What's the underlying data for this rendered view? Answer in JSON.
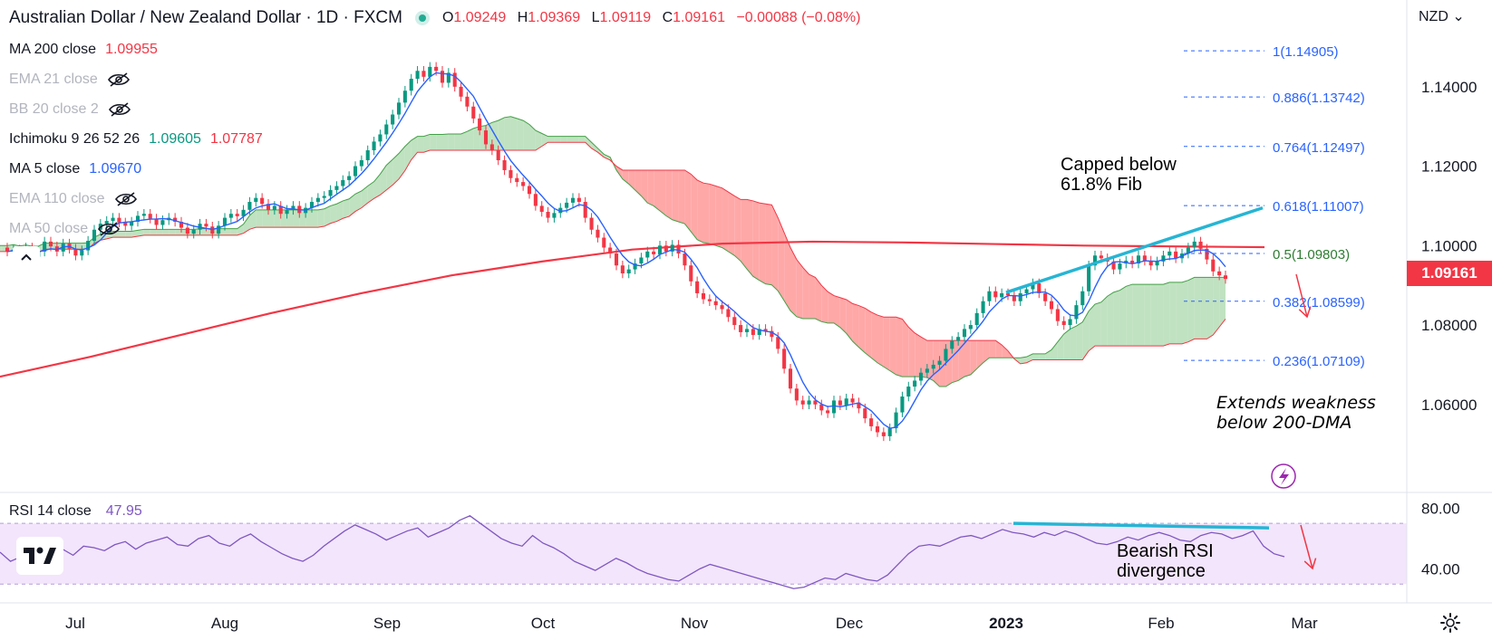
{
  "header": {
    "symbol": "Australian Dollar / New Zealand Dollar · 1D · FXCM",
    "open_label": "O",
    "open": "1.09249",
    "high_label": "H",
    "high": "1.09369",
    "low_label": "L",
    "low": "1.09119",
    "close_label": "C",
    "close": "1.09161",
    "change": "−0.00088 (−0.08%)"
  },
  "indicators": [
    {
      "name": "MA 200 close",
      "values": [
        "1.09955"
      ],
      "colors": [
        "#f23645"
      ],
      "hidden": false
    },
    {
      "name": "EMA 21 close",
      "values": [],
      "hidden": true
    },
    {
      "name": "BB 20 close 2",
      "values": [],
      "hidden": true
    },
    {
      "name": "Ichimoku 9 26 52 26",
      "values": [
        "1.09605",
        "1.07787"
      ],
      "colors": [
        "#089981",
        "#f23645"
      ],
      "hidden": false
    },
    {
      "name": "MA 5 close",
      "values": [
        "1.09670"
      ],
      "colors": [
        "#2962ff"
      ],
      "hidden": false
    },
    {
      "name": "EMA 110 close",
      "values": [],
      "hidden": true
    },
    {
      "name": "MA 50 close",
      "values": [],
      "hidden": true
    }
  ],
  "price_axis": {
    "currency": "NZD",
    "last_price": "1.09161",
    "ticks": [
      "1.14000",
      "1.12000",
      "1.10000",
      "1.08000",
      "1.06000"
    ]
  },
  "rsi": {
    "name": "RSI 14 close",
    "value": "47.95",
    "ticks": [
      "80.00",
      "40.00"
    ]
  },
  "annotations": {
    "capped": [
      "Capped below",
      "61.8% Fib"
    ],
    "extends": [
      "Extends weakness",
      "below 200-DMA"
    ],
    "bearish": [
      "Bearish RSI",
      "divergence"
    ]
  },
  "fib_levels": [
    {
      "label": "1(1.14905)",
      "price": 1.14905
    },
    {
      "label": "0.886(1.13742)",
      "price": 1.13742
    },
    {
      "label": "0.764(1.12497)",
      "price": 1.12497
    },
    {
      "label": "0.618(1.11007)",
      "price": 1.11007
    },
    {
      "label": "0.5(1.09803)",
      "price": 1.09803
    },
    {
      "label": "0.382(1.08599)",
      "price": 1.08599
    },
    {
      "label": "0.236(1.07109)",
      "price": 1.07109
    }
  ],
  "colors": {
    "up": "#089981",
    "down": "#f23645",
    "ma200": "#f23645",
    "ma5": "#2962ff",
    "cloud_green": "#a5d6a7",
    "cloud_red": "#ff9e9e",
    "trendline": "#26b5d4",
    "rsi": "#7e57c2",
    "rsi_band": "#f3e5fb",
    "fib": "#2962ff"
  },
  "chart_data": {
    "type": "candlestick",
    "x_labels": [
      "Jul",
      "Aug",
      "Sep",
      "Oct",
      "Nov",
      "Dec",
      "2023",
      "Feb",
      "Mar"
    ],
    "ylim": [
      1.044,
      1.155
    ],
    "rsi_ylim": [
      20,
      88
    ],
    "rsi_band": [
      30,
      70
    ],
    "closes": [
      1.0985,
      1.099,
      1.0978,
      1.0995,
      1.0972,
      1.0985,
      1.101,
      1.0998,
      1.0985,
      1.1005,
      1.0992,
      1.0975,
      1.0988,
      1.1012,
      1.104,
      1.1055,
      1.1062,
      1.107,
      1.1058,
      1.105,
      1.106,
      1.1075,
      1.108,
      1.1068,
      1.1052,
      1.1064,
      1.107,
      1.106,
      1.1045,
      1.103,
      1.104,
      1.1055,
      1.1048,
      1.103,
      1.105,
      1.107,
      1.108,
      1.1074,
      1.109,
      1.111,
      1.112,
      1.1105,
      1.109,
      1.11,
      1.108,
      1.109,
      1.11,
      1.1082,
      1.1095,
      1.111,
      1.112,
      1.1125,
      1.114,
      1.115,
      1.1165,
      1.1175,
      1.12,
      1.1215,
      1.124,
      1.1262,
      1.128,
      1.1305,
      1.133,
      1.136,
      1.139,
      1.142,
      1.144,
      1.1425,
      1.145,
      1.144,
      1.141,
      1.1435,
      1.14,
      1.1375,
      1.135,
      1.132,
      1.129,
      1.1255,
      1.124,
      1.1215,
      1.119,
      1.117,
      1.116,
      1.115,
      1.113,
      1.11,
      1.1085,
      1.107,
      1.1082,
      1.1095,
      1.1108,
      1.112,
      1.111,
      1.107,
      1.104,
      1.102,
      1.0995,
      1.098,
      1.095,
      1.093,
      1.094,
      1.0955,
      1.097,
      1.0985,
      1.0978,
      1.1,
      1.0985,
      1.1002,
      1.098,
      1.095,
      1.091,
      1.088,
      1.0865,
      1.086,
      1.085,
      1.084,
      1.082,
      1.08,
      1.0782,
      1.079,
      1.0775,
      1.079,
      1.0785,
      1.077,
      1.074,
      1.069,
      1.064,
      1.061,
      1.06,
      1.061,
      1.06,
      1.0585,
      1.0578,
      1.061,
      1.0598,
      1.0615,
      1.0605,
      1.059,
      1.0565,
      1.0545,
      1.053,
      1.052,
      1.054,
      1.058,
      1.062,
      1.0645,
      1.066,
      1.068,
      1.069,
      1.07,
      1.071,
      1.074,
      1.076,
      1.077,
      1.079,
      1.08,
      1.083,
      1.086,
      1.0885,
      1.087,
      1.088,
      1.0875,
      1.086,
      1.088,
      1.089,
      1.0905,
      1.088,
      1.086,
      1.084,
      1.081,
      1.08,
      1.0815,
      1.085,
      1.0885,
      1.095,
      1.0975,
      1.0968,
      1.096,
      1.094,
      1.0955,
      1.0962,
      1.0955,
      1.0975,
      1.0962,
      1.095,
      1.096,
      1.0975,
      1.0985,
      1.0968,
      1.098,
      1.0995,
      1.101,
      1.0992,
      1.0965,
      1.0935,
      1.0925,
      1.0916
    ],
    "ma200": [
      1.067,
      1.072,
      1.0775,
      1.083,
      1.088,
      1.0925,
      1.096,
      1.099,
      1.1005,
      1.101,
      1.1008,
      1.1004,
      1.1,
      1.0998,
      1.0996
    ],
    "rsi_values": [
      51,
      45,
      48,
      54,
      55,
      50,
      53,
      49,
      55,
      54,
      52,
      56,
      58,
      53,
      57,
      59,
      61,
      56,
      55,
      60,
      62,
      57,
      55,
      60,
      63,
      58,
      54,
      50,
      47,
      45,
      49,
      55,
      60,
      65,
      69,
      66,
      63,
      59,
      62,
      65,
      67,
      61,
      64,
      67,
      72,
      75,
      70,
      65,
      60,
      57,
      55,
      62,
      57,
      54,
      50,
      45,
      42,
      39,
      43,
      47,
      44,
      40,
      37,
      35,
      33,
      32,
      36,
      40,
      43,
      41,
      39,
      37,
      35,
      33,
      31,
      29,
      27,
      28,
      31,
      34,
      33,
      37,
      35,
      33,
      32,
      36,
      43,
      50,
      55,
      56,
      55,
      58,
      61,
      62,
      60,
      63,
      66,
      64,
      63,
      61,
      64,
      62,
      65,
      63,
      60,
      57,
      56,
      58,
      61,
      59,
      62,
      64,
      62,
      59,
      58,
      62,
      64,
      63,
      60,
      62,
      65,
      55,
      50,
      48
    ]
  }
}
